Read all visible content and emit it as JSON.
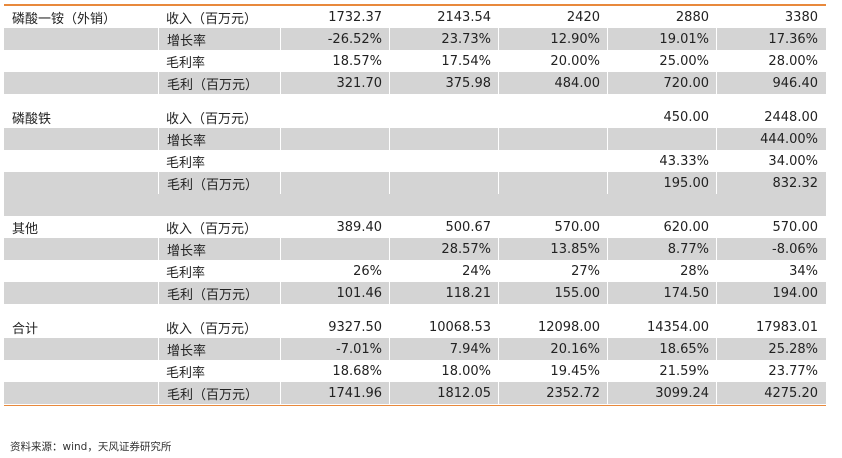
{
  "table": {
    "groups": [
      {
        "segment": "磷酸一铵（外销）",
        "rows": [
          {
            "metric": "收入（百万元）",
            "values": [
              "1732.37",
              "2143.54",
              "2420",
              "2880",
              "3380"
            ]
          },
          {
            "metric": "增长率",
            "values": [
              "-26.52%",
              "23.73%",
              "12.90%",
              "19.01%",
              "17.36%"
            ]
          },
          {
            "metric": "毛利率",
            "values": [
              "18.57%",
              "17.54%",
              "20.00%",
              "25.00%",
              "28.00%"
            ]
          },
          {
            "metric": "毛利（百万元）",
            "values": [
              "321.70",
              "375.98",
              "484.00",
              "720.00",
              "946.40"
            ]
          }
        ]
      },
      {
        "segment": "磷酸铁",
        "rows": [
          {
            "metric": "收入（百万元）",
            "values": [
              "",
              "",
              "",
              "450.00",
              "2448.00"
            ]
          },
          {
            "metric": "增长率",
            "values": [
              "",
              "",
              "",
              "",
              "444.00%"
            ]
          },
          {
            "metric": "毛利率",
            "values": [
              "",
              "",
              "",
              "43.33%",
              "34.00%"
            ]
          },
          {
            "metric": "毛利（百万元）",
            "values": [
              "",
              "",
              "",
              "195.00",
              "832.32"
            ]
          }
        ]
      },
      {
        "segment": "其他",
        "rows": [
          {
            "metric": "收入（百万元）",
            "values": [
              "389.40",
              "500.67",
              "570.00",
              "620.00",
              "570.00"
            ]
          },
          {
            "metric": "增长率",
            "values": [
              "",
              "28.57%",
              "13.85%",
              "8.77%",
              "-8.06%"
            ]
          },
          {
            "metric": "毛利率",
            "values": [
              "26%",
              "24%",
              "27%",
              "28%",
              "34%"
            ]
          },
          {
            "metric": "毛利（百万元）",
            "values": [
              "101.46",
              "118.21",
              "155.00",
              "174.50",
              "194.00"
            ]
          }
        ]
      },
      {
        "segment": "合计",
        "rows": [
          {
            "metric": "收入（百万元）",
            "values": [
              "9327.50",
              "10068.53",
              "12098.00",
              "14354.00",
              "17983.01"
            ]
          },
          {
            "metric": "增长率",
            "values": [
              "-7.01%",
              "7.94%",
              "20.16%",
              "18.65%",
              "25.28%"
            ]
          },
          {
            "metric": "毛利率",
            "values": [
              "18.68%",
              "18.00%",
              "19.45%",
              "21.59%",
              "23.77%"
            ]
          },
          {
            "metric": "毛利（百万元）",
            "values": [
              "1741.96",
              "1812.05",
              "2352.72",
              "3099.24",
              "4275.20"
            ]
          }
        ]
      }
    ]
  },
  "source": "资料来源：wind，天风证券研究所",
  "colors": {
    "accent": "#e8893c",
    "shade": "#d4d4d4"
  }
}
